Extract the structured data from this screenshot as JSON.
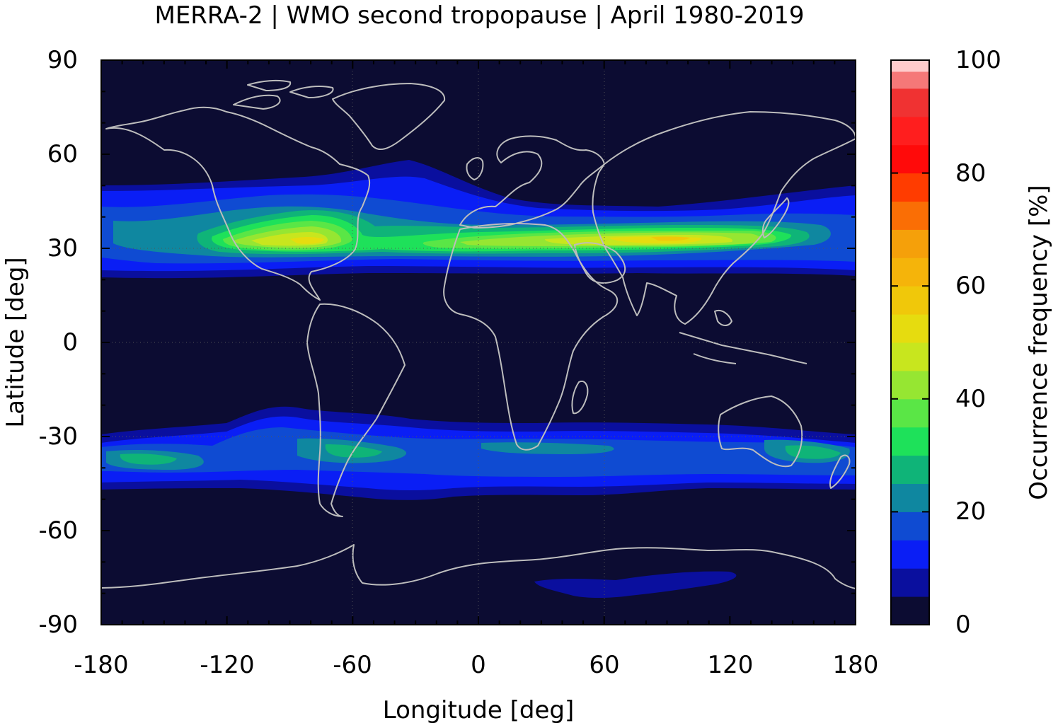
{
  "title": "MERRA-2 | WMO second tropopause | April 1980-2019",
  "map": {
    "x_label": "Longitude [deg]",
    "y_label": "Latitude [deg]",
    "x_range": [
      -180,
      180
    ],
    "y_range": [
      -90,
      90
    ],
    "x_ticks": [
      "-180",
      "-120",
      "-60",
      "0",
      "60",
      "120",
      "180"
    ],
    "y_ticks": [
      "90",
      "60",
      "30",
      "0",
      "-30",
      "-60",
      "-90"
    ],
    "background_color": "#0c0c32",
    "coastline_color": "#bdbdbd",
    "gridlines_dotted": [
      0,
      30,
      -30,
      60,
      120,
      -60,
      -120
    ]
  },
  "colorbar": {
    "label": "Occurrence frequency [%]",
    "range": [
      0,
      100
    ],
    "tick_labels": [
      "100",
      "80",
      "60",
      "40",
      "20",
      "0"
    ],
    "levels": [
      {
        "from": 0,
        "to": 5,
        "color": "#0c0c32"
      },
      {
        "from": 5,
        "to": 10,
        "color": "#0a0f9e"
      },
      {
        "from": 10,
        "to": 15,
        "color": "#0a1ef5"
      },
      {
        "from": 15,
        "to": 20,
        "color": "#0f4bd2"
      },
      {
        "from": 20,
        "to": 25,
        "color": "#0f87a0"
      },
      {
        "from": 25,
        "to": 30,
        "color": "#0fb478"
      },
      {
        "from": 30,
        "to": 35,
        "color": "#1ee15a"
      },
      {
        "from": 35,
        "to": 40,
        "color": "#5ae646"
      },
      {
        "from": 40,
        "to": 45,
        "color": "#96e632"
      },
      {
        "from": 45,
        "to": 50,
        "color": "#c8e61e"
      },
      {
        "from": 50,
        "to": 55,
        "color": "#e6dc0f"
      },
      {
        "from": 55,
        "to": 60,
        "color": "#f0c80a"
      },
      {
        "from": 60,
        "to": 65,
        "color": "#f5b40a"
      },
      {
        "from": 65,
        "to": 70,
        "color": "#f5a00a"
      },
      {
        "from": 70,
        "to": 75,
        "color": "#fa6e05"
      },
      {
        "from": 75,
        "to": 80,
        "color": "#ff3c00"
      },
      {
        "from": 80,
        "to": 85,
        "color": "#ff0a0a"
      },
      {
        "from": 85,
        "to": 90,
        "color": "#ff1e1e"
      },
      {
        "from": 90,
        "to": 95,
        "color": "#f03232"
      },
      {
        "from": 95,
        "to": 98,
        "color": "#f57878"
      },
      {
        "from": 98,
        "to": 100,
        "color": "#ffcccc"
      }
    ]
  },
  "frequency_bands": [
    {
      "region": "northern subtropical band",
      "lat_center": 32,
      "peak_percent": 55
    },
    {
      "region": "southern subtropical band",
      "lat_center": -35,
      "peak_percent": 25
    },
    {
      "region": "antarctic",
      "lat_center": -77,
      "peak_percent": 10
    }
  ]
}
